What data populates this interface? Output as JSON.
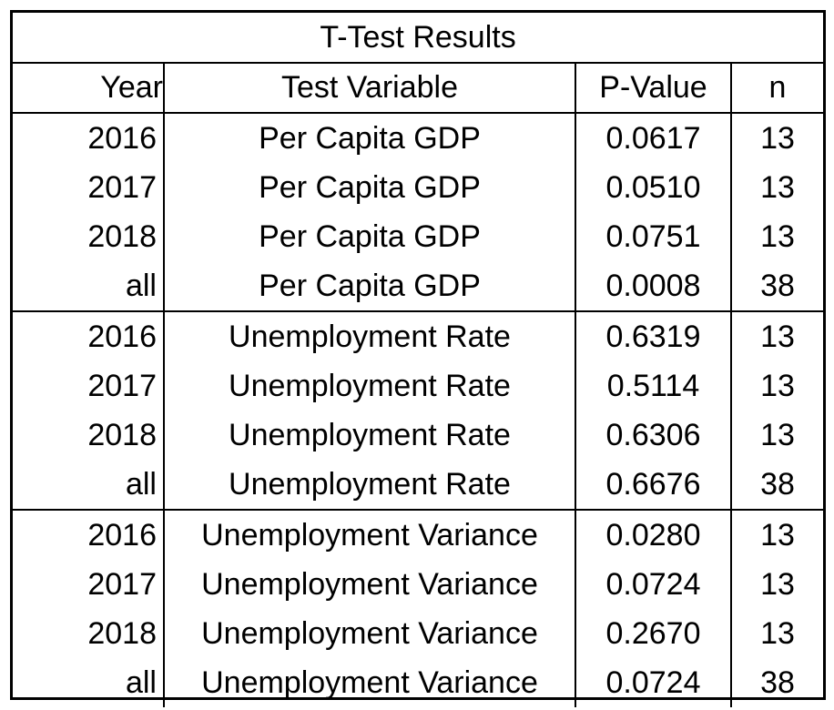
{
  "table": {
    "title": "T-Test Results",
    "headers": {
      "year": "Year",
      "test_variable": "Test Variable",
      "p_value": "P-Value",
      "n": "n"
    },
    "rows": [
      {
        "year": "2016",
        "variable": "Per Capita GDP",
        "p_value": "0.0617",
        "n": "13"
      },
      {
        "year": "2017",
        "variable": "Per Capita GDP",
        "p_value": "0.0510",
        "n": "13"
      },
      {
        "year": "2018",
        "variable": "Per Capita GDP",
        "p_value": "0.0751",
        "n": "13"
      },
      {
        "year": "all",
        "variable": "Per Capita GDP",
        "p_value": "0.0008",
        "n": "38"
      },
      {
        "year": "2016",
        "variable": "Unemployment Rate",
        "p_value": "0.6319",
        "n": "13"
      },
      {
        "year": "2017",
        "variable": "Unemployment Rate",
        "p_value": "0.5114",
        "n": "13"
      },
      {
        "year": "2018",
        "variable": "Unemployment Rate",
        "p_value": "0.6306",
        "n": "13"
      },
      {
        "year": "all",
        "variable": "Unemployment Rate",
        "p_value": "0.6676",
        "n": "38"
      },
      {
        "year": "2016",
        "variable": "Unemployment Variance",
        "p_value": "0.0280",
        "n": "13"
      },
      {
        "year": "2017",
        "variable": "Unemployment Variance",
        "p_value": "0.0724",
        "n": "13"
      },
      {
        "year": "2018",
        "variable": "Unemployment Variance",
        "p_value": "0.2670",
        "n": "13"
      },
      {
        "year": "all",
        "variable": "Unemployment Variance",
        "p_value": "0.0724",
        "n": "38"
      }
    ]
  }
}
